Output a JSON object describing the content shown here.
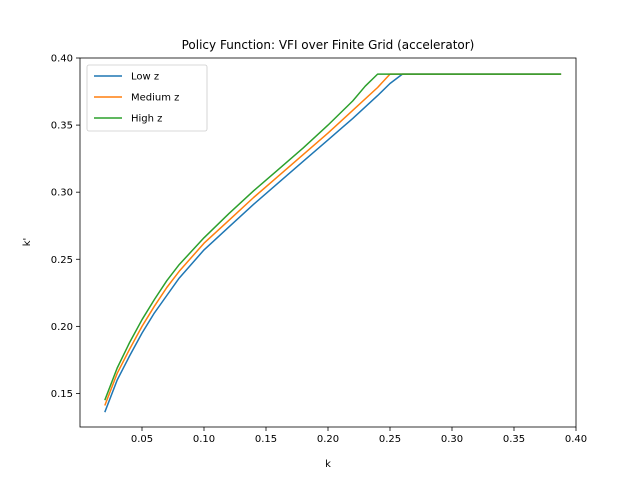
{
  "chart_data": {
    "type": "line",
    "title": "Policy Function: VFI over Finite Grid (accelerator)",
    "xlabel": "k",
    "ylabel": "k'",
    "xlim": [
      0.0,
      0.4
    ],
    "ylim": [
      0.125,
      0.4
    ],
    "xticks": [
      "0.05",
      "0.10",
      "0.15",
      "0.20",
      "0.25",
      "0.30",
      "0.35",
      "0.40"
    ],
    "yticks": [
      "0.15",
      "0.20",
      "0.25",
      "0.30",
      "0.35",
      "0.40"
    ],
    "legend_position": "top-left",
    "grid": false,
    "series": [
      {
        "name": "Low z",
        "color": "#1f77b4",
        "x": [
          0.02,
          0.03,
          0.04,
          0.05,
          0.06,
          0.07,
          0.08,
          0.1,
          0.12,
          0.14,
          0.16,
          0.18,
          0.2,
          0.22,
          0.24,
          0.25,
          0.26,
          0.28,
          0.3,
          0.32,
          0.34,
          0.36,
          0.388
        ],
        "y": [
          0.136,
          0.16,
          0.178,
          0.195,
          0.21,
          0.223,
          0.236,
          0.257,
          0.274,
          0.291,
          0.307,
          0.323,
          0.339,
          0.355,
          0.372,
          0.381,
          0.388,
          0.388,
          0.388,
          0.388,
          0.388,
          0.388,
          0.388
        ]
      },
      {
        "name": "Medium z",
        "color": "#ff7f0e",
        "x": [
          0.02,
          0.03,
          0.04,
          0.05,
          0.06,
          0.07,
          0.08,
          0.1,
          0.12,
          0.14,
          0.16,
          0.18,
          0.2,
          0.22,
          0.24,
          0.25,
          0.26,
          0.28,
          0.3,
          0.32,
          0.34,
          0.36,
          0.388
        ],
        "y": [
          0.141,
          0.165,
          0.183,
          0.2,
          0.215,
          0.229,
          0.241,
          0.262,
          0.279,
          0.296,
          0.312,
          0.328,
          0.344,
          0.361,
          0.378,
          0.388,
          0.388,
          0.388,
          0.388,
          0.388,
          0.388,
          0.388,
          0.388
        ]
      },
      {
        "name": "High z",
        "color": "#2ca02c",
        "x": [
          0.02,
          0.03,
          0.04,
          0.05,
          0.06,
          0.07,
          0.08,
          0.1,
          0.12,
          0.14,
          0.16,
          0.18,
          0.2,
          0.22,
          0.23,
          0.24,
          0.26,
          0.28,
          0.3,
          0.32,
          0.34,
          0.36,
          0.388
        ],
        "y": [
          0.145,
          0.169,
          0.188,
          0.205,
          0.22,
          0.234,
          0.246,
          0.266,
          0.284,
          0.301,
          0.317,
          0.333,
          0.35,
          0.368,
          0.379,
          0.388,
          0.388,
          0.388,
          0.388,
          0.388,
          0.388,
          0.388,
          0.388
        ]
      }
    ]
  }
}
